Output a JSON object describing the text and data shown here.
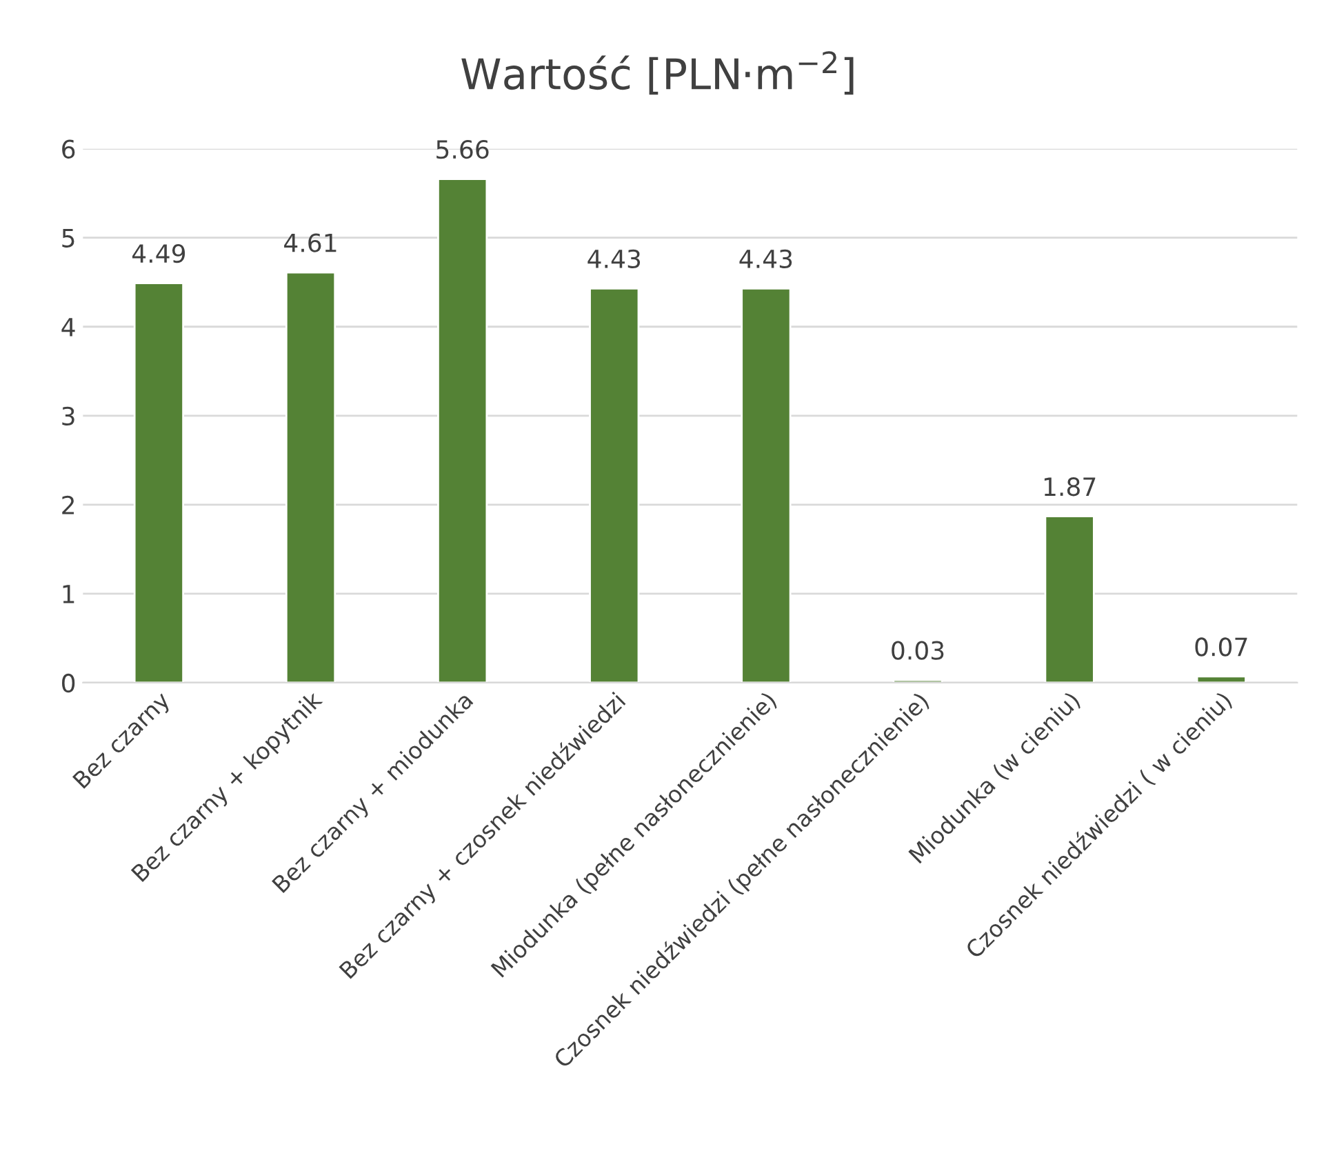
{
  "chart_data": {
    "type": "bar",
    "title": "Wartość [PLN·m$^{−2}$]",
    "categories": [
      "Bez czarny",
      "Bez czarny + kopytnik",
      "Bez czarny + miodunka",
      "Bez czarny + czosnek niedźwiedzi",
      "Miodunka (pełne nasłonecznienie)",
      "Czosnek niedźwiedzi (pełne nasłonecznienie)",
      "Miodunka (w cieniu)",
      "Czosnek niedźwiedzi ( w cieniu)"
    ],
    "values": [
      4.49,
      4.61,
      5.66,
      4.43,
      4.43,
      0.03,
      1.87,
      0.07
    ],
    "color": "#548235",
    "ylim": [
      0,
      6
    ],
    "yticks": [
      0,
      1,
      2,
      3,
      4,
      5,
      6
    ],
    "grid": "y",
    "data_labels": true,
    "legend": false
  }
}
